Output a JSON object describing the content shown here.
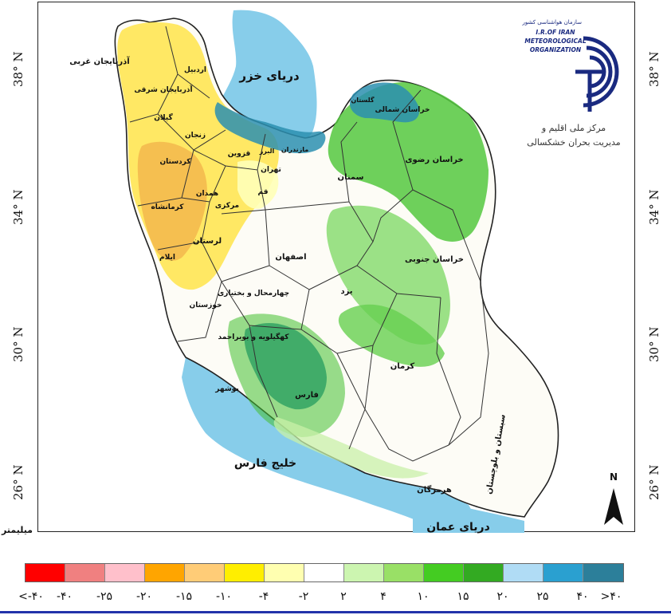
{
  "map": {
    "unit_label": "میلیمتر",
    "latitudes": [
      {
        "label": "38° N",
        "y": 87
      },
      {
        "label": "34° N",
        "y": 260
      },
      {
        "label": "30° N",
        "y": 432
      },
      {
        "label": "26° N",
        "y": 605
      }
    ],
    "seas": {
      "caspian": "دریای خزر",
      "persian_gulf": "خلیج فارس",
      "oman_sea": "دریای عمان"
    },
    "north_label": "N",
    "provinces": [
      "آذربایجان غربی",
      "اردبیل",
      "آذربایجان شرقی",
      "زنجان",
      "گیلان",
      "کردستان",
      "همدان",
      "کرمانشاه",
      "قزوین",
      "البرز",
      "تهران",
      "مازندران",
      "گلستان",
      "خراسان شمالی",
      "خراسان رضوی",
      "سمنان",
      "قم",
      "مرکزی",
      "لرستان",
      "ایلام",
      "اصفهان",
      "خراسان جنوبی",
      "یزد",
      "چهارمحال و بختیاری",
      "خوزستان",
      "کهگیلویه و بویراحمد",
      "فارس",
      "کرمان",
      "بوشهر",
      "هرمزگان",
      "سیستان و بلوچستان"
    ]
  },
  "logo": {
    "org_fa": "سازمان هواشناسی کشور",
    "org_en_1": "I.R.OF IRAN",
    "org_en_2": "METEOROLOGICAL",
    "org_en_3": "ORGANIZATION",
    "center_fa_1": "مرکز ملی اقلیم و",
    "center_fa_2": "مدیریت بحران خشکسالی"
  },
  "legend": {
    "colors": [
      "#ff0000",
      "#f08080",
      "#ffc0cb",
      "#ffa500",
      "#ffcc77",
      "#ffee00",
      "#ffffb0",
      "#ffffff",
      "#ccf5b0",
      "#99e066",
      "#44cc22",
      "#33aa22",
      "#b0dcf5",
      "#2aa0d0",
      "#2c7f9a"
    ],
    "ticks": [
      "<-۴۰",
      "-۴۰",
      "-۲۵",
      "-۲۰",
      "-۱۵",
      "-۱۰",
      "-۴",
      "-۲",
      "۲",
      "۴",
      "۱۰",
      "۱۵",
      "۲۰",
      "۲۵",
      "۴۰",
      ">۴۰"
    ]
  }
}
